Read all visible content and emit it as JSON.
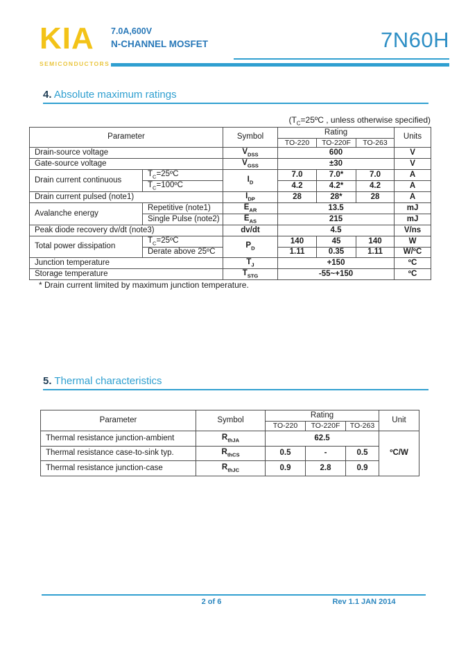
{
  "colors": {
    "accent_blue": "#2F9FD0",
    "header_text_blue": "#2878B8",
    "part_blue": "#2E8FC5",
    "footer_blue": "#2A86BF",
    "logo_yellow": "#F3C318",
    "logo_sub_yellow": "#EAC63F"
  },
  "header": {
    "logo": {
      "brand": "KIA",
      "sub": "SEMICONDUCTORS"
    },
    "subtitle_line1": "7.0A,600V",
    "subtitle_line2": "N-CHANNEL MOSFET",
    "part_number": "7N60H"
  },
  "section4": {
    "number": "4.",
    "title": "Absolute maximum ratings",
    "condition_note": "(T_{C}=25ºC , unless otherwise specified)",
    "table": {
      "head": {
        "parameter": "Parameter",
        "symbol": "Symbol",
        "rating": "Rating",
        "unit": "Units",
        "packages": [
          "TO-220",
          "TO-220F",
          "TO-263"
        ]
      },
      "rows": [
        [
          {
            "t": "Drain-source voltage",
            "cs": 2,
            "c": "param"
          },
          {
            "t": "V_{DSS}",
            "c": "sym"
          },
          {
            "t": "600",
            "cs": 3,
            "c": "val"
          },
          {
            "t": "V",
            "c": "unit"
          }
        ],
        [
          {
            "t": "Gate-source voltage",
            "cs": 2,
            "c": "param"
          },
          {
            "t": "V_{GSS}",
            "c": "sym"
          },
          {
            "t": "±30",
            "cs": 3,
            "c": "val"
          },
          {
            "t": "V",
            "c": "unit"
          }
        ],
        [
          {
            "t": "Drain current continuous",
            "rs": 2,
            "c": "param"
          },
          {
            "t": "T_{C}=25ºC",
            "c": "subparam"
          },
          {
            "t": "I_{D}",
            "rs": 2,
            "c": "sym"
          },
          {
            "t": "7.0",
            "c": "val"
          },
          {
            "t": "7.0*",
            "c": "val"
          },
          {
            "t": "7.0",
            "c": "val"
          },
          {
            "t": "A",
            "c": "unit"
          }
        ],
        [
          {
            "t": "T_{C}=100ºC",
            "c": "subparam"
          },
          {
            "t": "4.2",
            "c": "val"
          },
          {
            "t": "4.2*",
            "c": "val"
          },
          {
            "t": "4.2",
            "c": "val"
          },
          {
            "t": "A",
            "c": "unit"
          }
        ],
        [
          {
            "t": "Drain current pulsed (note1)",
            "cs": 2,
            "c": "param"
          },
          {
            "t": "I_{DP}",
            "c": "sym"
          },
          {
            "t": "28",
            "c": "val"
          },
          {
            "t": "28*",
            "c": "val"
          },
          {
            "t": "28",
            "c": "val"
          },
          {
            "t": "A",
            "c": "unit"
          }
        ],
        [
          {
            "t": "Avalanche energy",
            "rs": 2,
            "c": "param"
          },
          {
            "t": "Repetitive (note1)",
            "c": "subparam"
          },
          {
            "t": "E_{AR}",
            "c": "sym"
          },
          {
            "t": "13.5",
            "cs": 3,
            "c": "val"
          },
          {
            "t": "mJ",
            "c": "unit"
          }
        ],
        [
          {
            "t": "Single Pulse (note2)",
            "c": "subparam"
          },
          {
            "t": "E_{AS}",
            "c": "sym"
          },
          {
            "t": "215",
            "cs": 3,
            "c": "val"
          },
          {
            "t": "mJ",
            "c": "unit"
          }
        ],
        [
          {
            "t": "Peak diode recovery dv/dt (note3)",
            "cs": 2,
            "c": "param"
          },
          {
            "t": "dv/dt",
            "c": "sym"
          },
          {
            "t": "4.5",
            "cs": 3,
            "c": "val"
          },
          {
            "t": "V/ns",
            "c": "unit"
          }
        ],
        [
          {
            "t": "Total power dissipation",
            "rs": 2,
            "c": "param"
          },
          {
            "t": "T_{C}=25ºC",
            "c": "subparam"
          },
          {
            "t": "P_{D}",
            "rs": 2,
            "c": "sym"
          },
          {
            "t": "140",
            "c": "val"
          },
          {
            "t": "45",
            "c": "val"
          },
          {
            "t": "140",
            "c": "val"
          },
          {
            "t": "W",
            "c": "unit"
          }
        ],
        [
          {
            "t": "Derate above 25ºC",
            "c": "subparam"
          },
          {
            "t": "1.11",
            "c": "val"
          },
          {
            "t": "0.35",
            "c": "val"
          },
          {
            "t": "1.11",
            "c": "val"
          },
          {
            "t": "W/ºC",
            "c": "unit"
          }
        ],
        [
          {
            "t": "Junction temperature",
            "cs": 2,
            "c": "param"
          },
          {
            "t": "T_{J}",
            "c": "sym"
          },
          {
            "t": "+150",
            "cs": 3,
            "c": "val"
          },
          {
            "t": "ºC",
            "c": "unit"
          }
        ],
        [
          {
            "t": "Storage temperature",
            "cs": 2,
            "c": "param"
          },
          {
            "t": "T_{STG}",
            "c": "sym"
          },
          {
            "t": "-55~+150",
            "cs": 3,
            "c": "val"
          },
          {
            "t": "ºC",
            "c": "unit"
          }
        ]
      ]
    },
    "footnote": "* Drain current limited by maximum junction temperature."
  },
  "section5": {
    "number": "5.",
    "title": "Thermal characteristics",
    "table": {
      "head": {
        "parameter": "Parameter",
        "symbol": "Symbol",
        "rating": "Rating",
        "unit": "Unit",
        "packages": [
          "TO-220",
          "TO-220F",
          "TO-263"
        ]
      },
      "rows": [
        [
          {
            "t": "Thermal resistance junction-ambient",
            "c": "param"
          },
          {
            "t": "R_{thJA}",
            "c": "sym"
          },
          {
            "t": "62.5",
            "cs": 3,
            "c": "val"
          },
          {
            "t": "ºC/W",
            "rs": 3,
            "c": "unit"
          }
        ],
        [
          {
            "t": "Thermal resistance case-to-sink typ.",
            "c": "param"
          },
          {
            "t": "R_{thCS}",
            "c": "sym"
          },
          {
            "t": "0.5",
            "c": "val"
          },
          {
            "t": "-",
            "c": "val"
          },
          {
            "t": "0.5",
            "c": "val"
          }
        ],
        [
          {
            "t": "Thermal resistance junction-case",
            "c": "param"
          },
          {
            "t": "R_{thJC}",
            "c": "sym"
          },
          {
            "t": "0.9",
            "c": "val"
          },
          {
            "t": "2.8",
            "c": "val"
          },
          {
            "t": "0.9",
            "c": "val"
          }
        ]
      ]
    }
  },
  "footer": {
    "page": "2 of 6",
    "rev": "Rev 1.1 JAN 2014"
  }
}
